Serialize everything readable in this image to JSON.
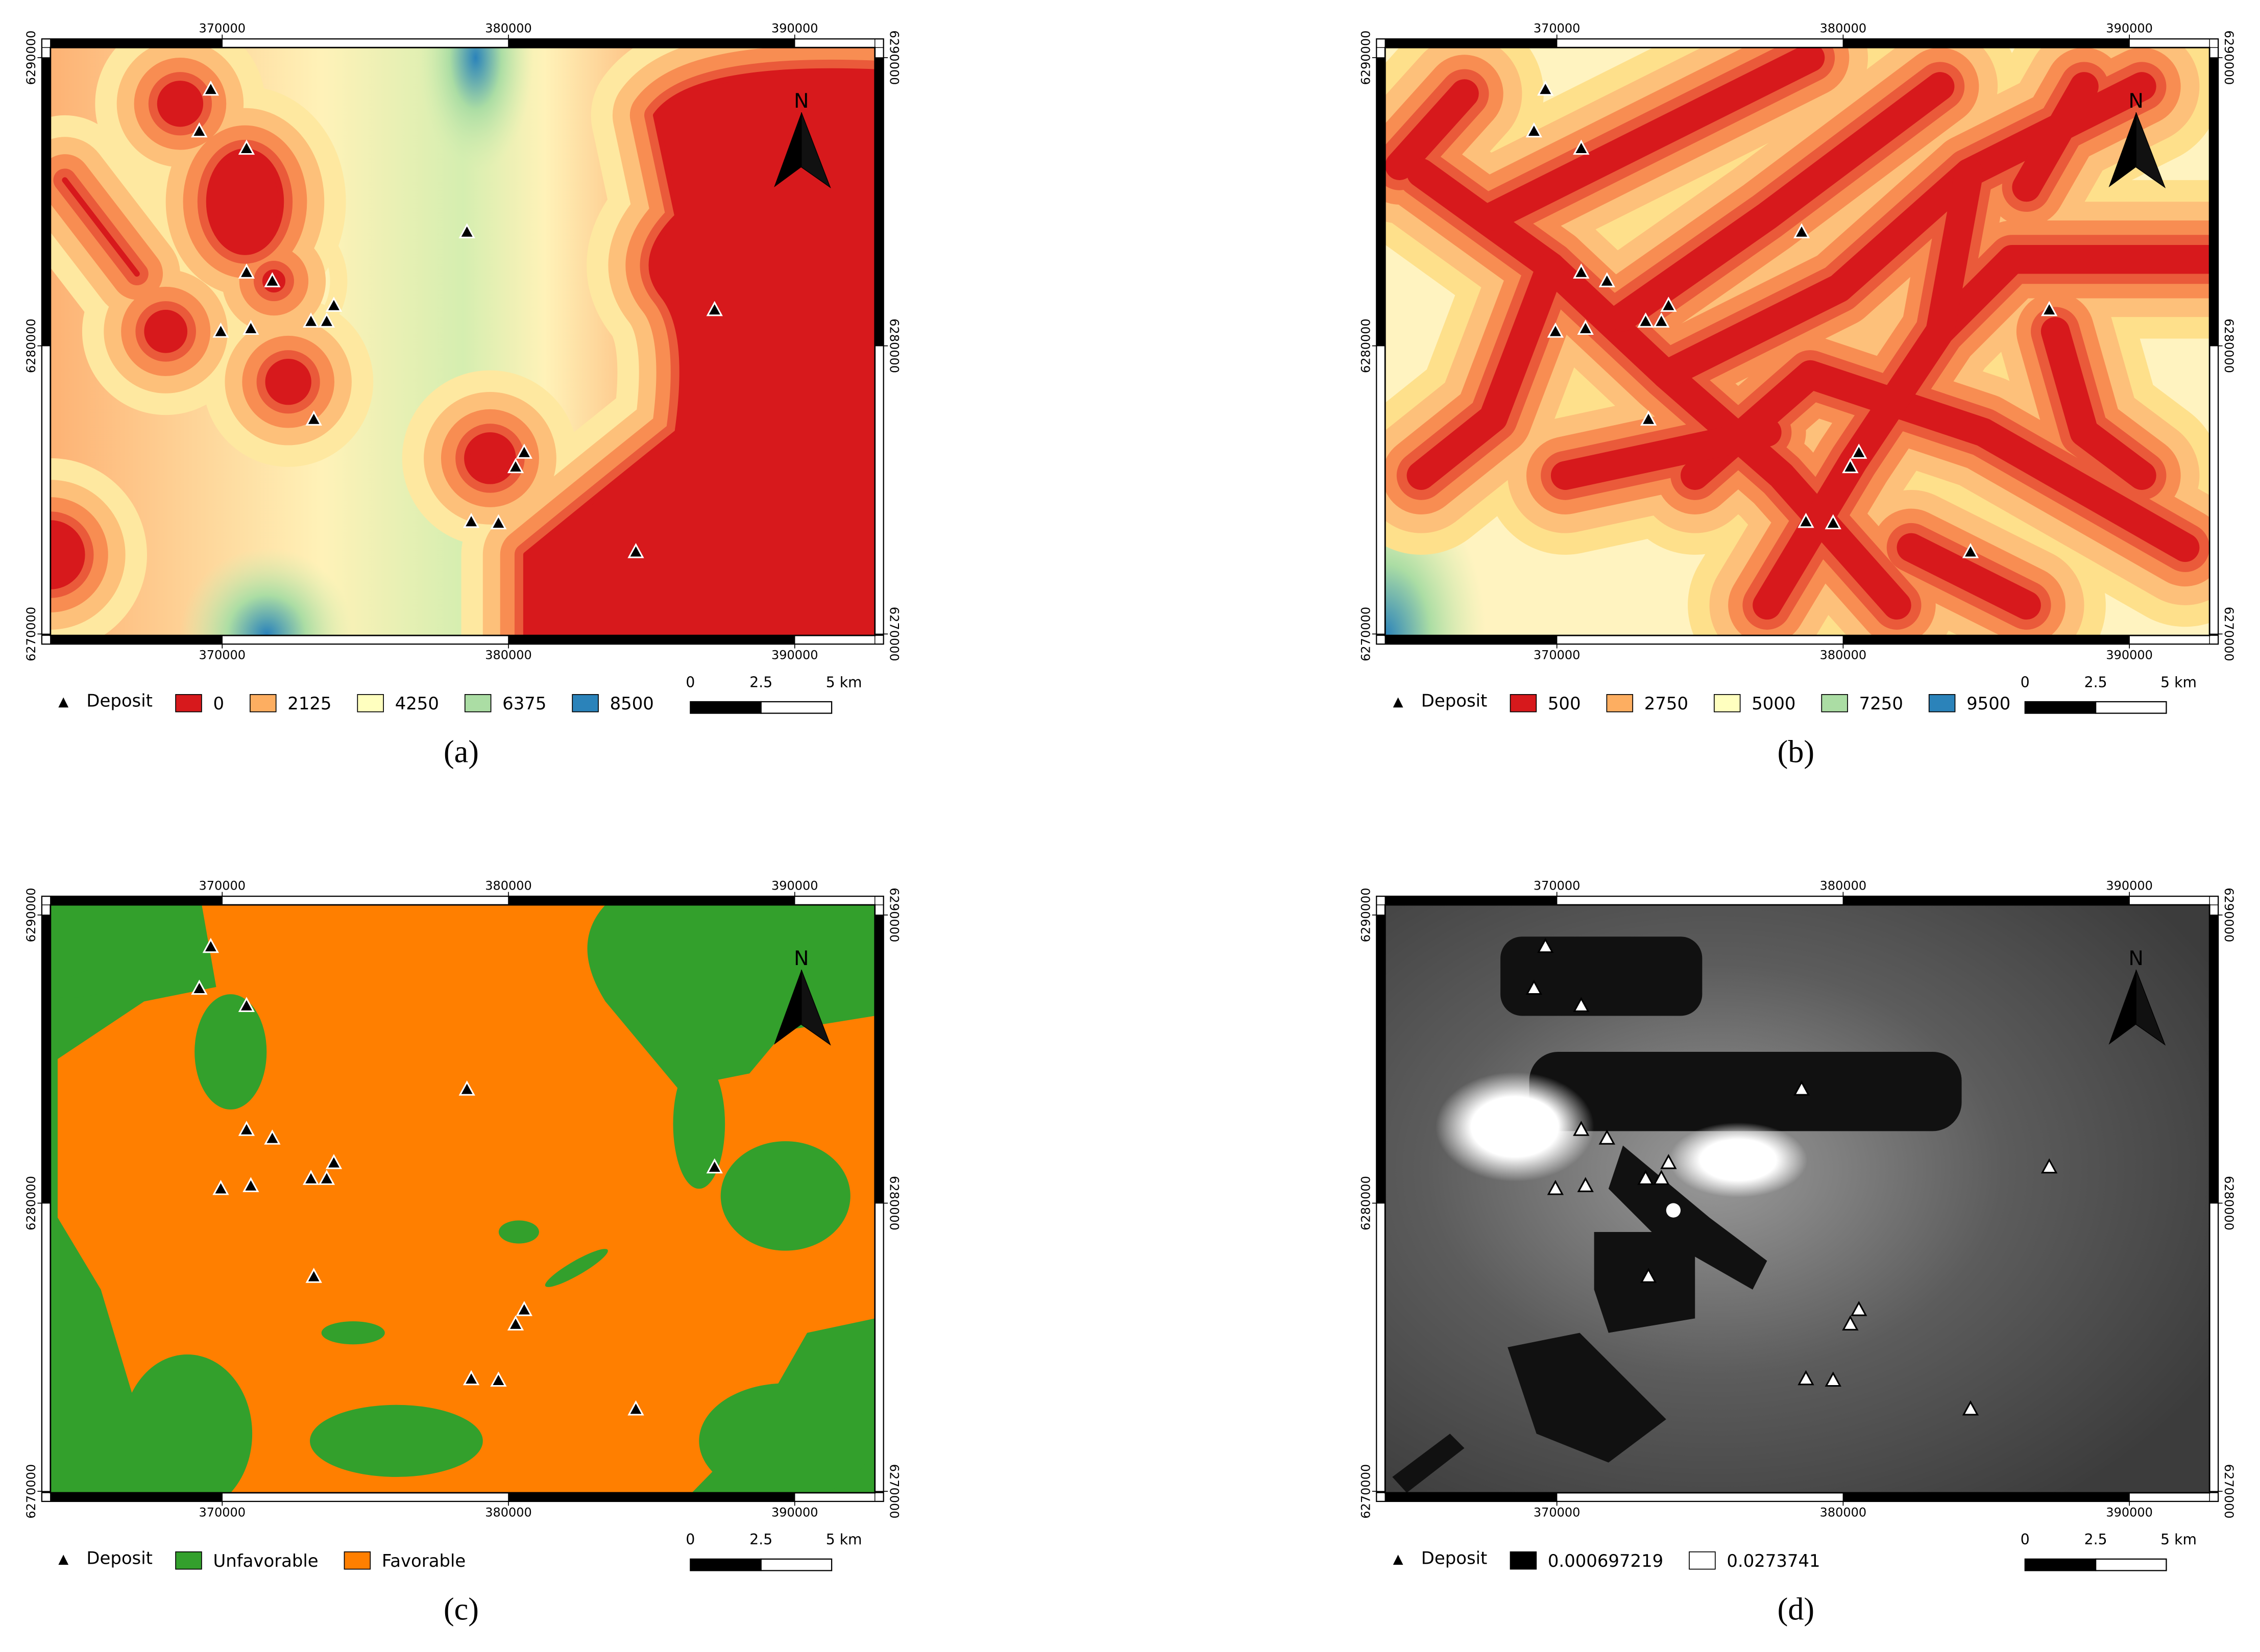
{
  "map": {
    "xlim": [
      364000,
      392800
    ],
    "ylim": [
      6269950,
      6290350
    ],
    "xticks": [
      370000,
      380000,
      390000
    ],
    "yticks": [
      6270000,
      6280000,
      6290000
    ],
    "north": "N",
    "scale_bar": {
      "ticks": [
        0,
        2.5,
        {
          "value": 5,
          "label": "5 km"
        }
      ]
    },
    "deposits": {
      "name": "Deposit",
      "x": [
        369600,
        369200,
        370850,
        378550,
        370850,
        371750,
        373900,
        373100,
        373650,
        369950,
        371000,
        387200,
        373200,
        380550,
        380250,
        378700,
        379650,
        384450
      ],
      "y": [
        6288900,
        6287450,
        6286850,
        6283950,
        6282550,
        6282250,
        6281400,
        6280850,
        6280850,
        6280500,
        6280600,
        6281250,
        6277450,
        6276300,
        6275800,
        6273900,
        6273850,
        6272850
      ]
    }
  },
  "panels": [
    {
      "label": "(a)",
      "legend": [
        {
          "label": 0,
          "color": "#d7191c"
        },
        {
          "label": 2125,
          "color": "#fdae61"
        },
        {
          "label": 4250,
          "color": "#ffffbf"
        },
        {
          "label": 6375,
          "color": "#abdda4"
        },
        {
          "label": 8500,
          "color": "#2b83ba"
        }
      ]
    },
    {
      "label": "(b)",
      "legend": [
        {
          "label": 500,
          "color": "#d7191c"
        },
        {
          "label": 2750,
          "color": "#fdae61"
        },
        {
          "label": 5000,
          "color": "#ffffbf"
        },
        {
          "label": 7250,
          "color": "#abdda4"
        },
        {
          "label": 9500,
          "color": "#2b83ba"
        }
      ]
    },
    {
      "label": "(c)",
      "legend": [
        {
          "label": "Unfavorable",
          "color": "#33a02c"
        },
        {
          "label": "Favorable",
          "color": "#ff7f00"
        }
      ]
    },
    {
      "label": "(d)",
      "legend": [
        {
          "label": 0.000697219,
          "color": "#000000"
        },
        {
          "label": 0.0273741,
          "color": "#ffffff"
        }
      ]
    }
  ]
}
